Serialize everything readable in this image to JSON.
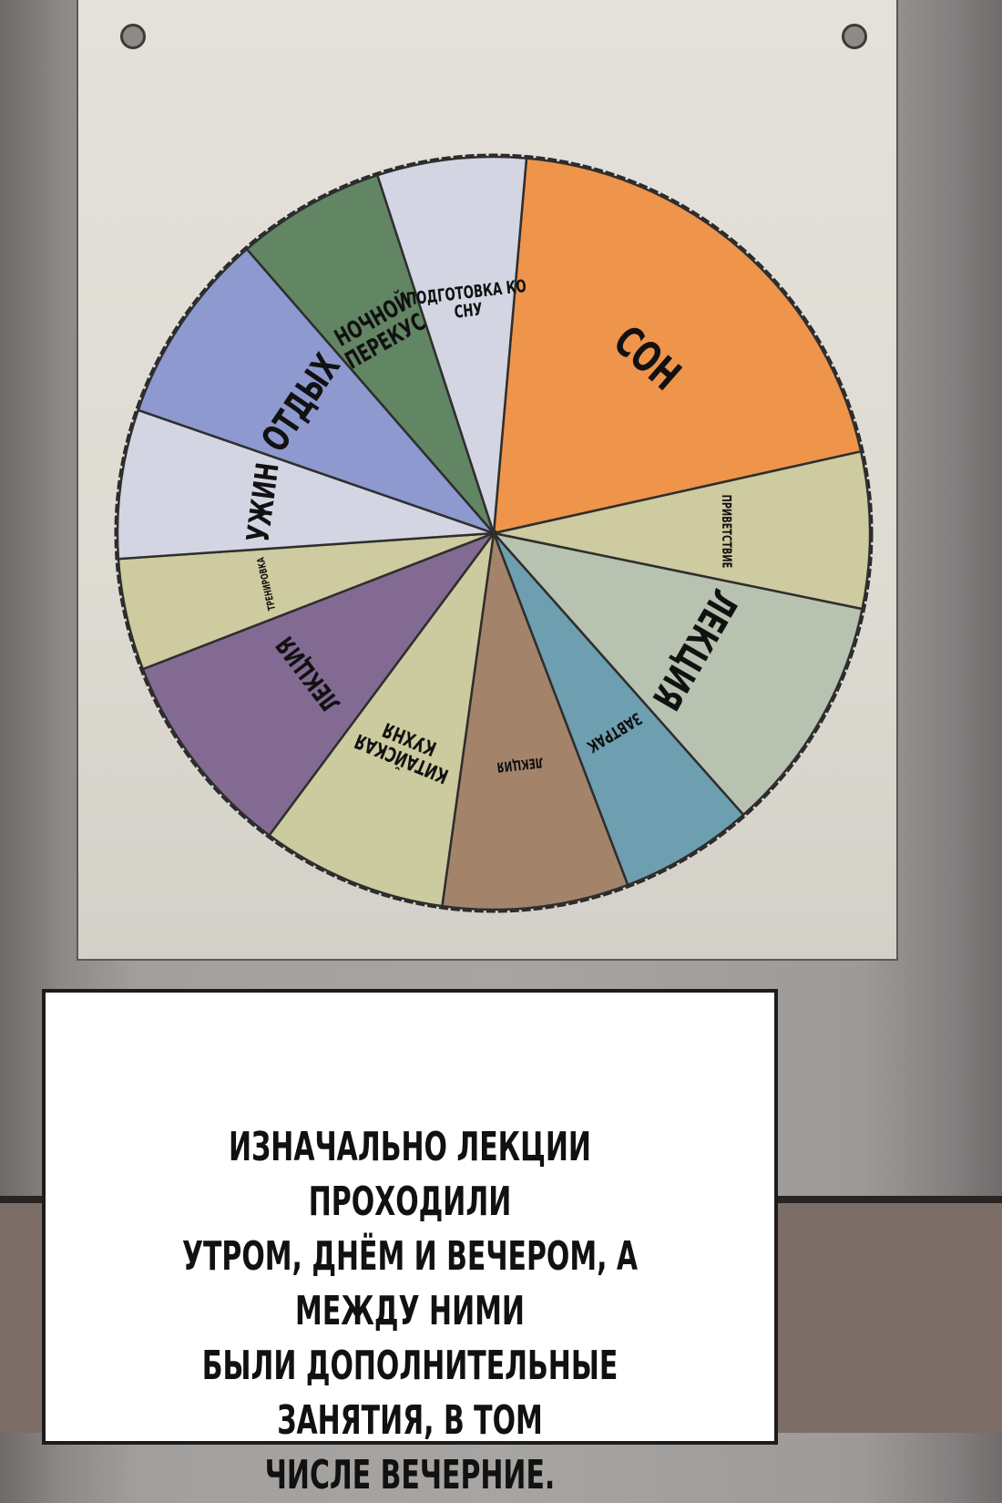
{
  "colors": {
    "poster_bg": "#dedbd3",
    "caption_bg": "#ffffff",
    "text": "#111111"
  },
  "chart_data": {
    "type": "pie",
    "title": "",
    "slices": [
      {
        "label": "СОН",
        "value": 6.3,
        "color": "#ef944b"
      },
      {
        "label": "ПРИВЕТСТВИЕ",
        "value": 2.1,
        "color": "#cdcb9f"
      },
      {
        "label": "ЛЕКЦИЯ",
        "value": 3.2,
        "color": "#b8c2b0"
      },
      {
        "label": "ЗАВТРАК",
        "value": 1.8,
        "color": "#6e9fb0"
      },
      {
        "label": "ЛЕКЦИЯ",
        "value": 2.5,
        "color": "#a3846b"
      },
      {
        "label": "КИТАЙСКАЯ КУХНЯ",
        "value": 2.5,
        "color": "#ccca9f"
      },
      {
        "label": "ЛЕКЦИЯ",
        "value": 2.8,
        "color": "#836a93"
      },
      {
        "label": "ТРЕНИРОВКА",
        "value": 1.5,
        "color": "#cdcb9f"
      },
      {
        "label": "УЖИН",
        "value": 2.0,
        "color": "#d3d5e3"
      },
      {
        "label": "ОТДЫХ",
        "value": 2.6,
        "color": "#8d99cf"
      },
      {
        "label": "НОЧНОЙ ПЕРЕКУС",
        "value": 2.0,
        "color": "#628564"
      },
      {
        "label": "ПОДГОТОВКА КО СНУ",
        "value": 2.0,
        "color": "#d3d5e3"
      }
    ]
  },
  "caption": {
    "lines": [
      "ИЗНАЧАЛЬНО ЛЕКЦИИ ПРОХОДИЛИ",
      "УТРОМ, ДНЁМ И ВЕЧЕРОМ, А МЕЖДУ НИМИ",
      "БЫЛИ ДОПОЛНИТЕЛЬНЫЕ ЗАНЯТИЯ, В ТОМ",
      "ЧИСЛЕ ВЕЧЕРНИЕ."
    ]
  }
}
